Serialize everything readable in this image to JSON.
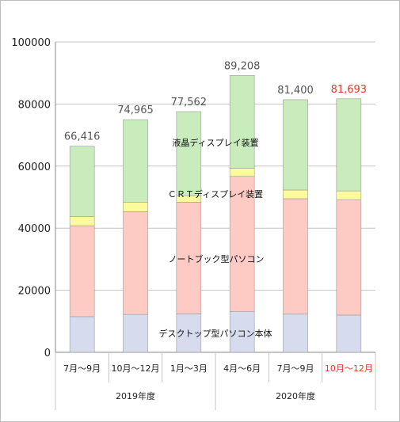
{
  "chart_data": {
    "type": "bar",
    "stacked": true,
    "ylim": [
      0,
      100000
    ],
    "yticks": [
      0,
      20000,
      40000,
      60000,
      80000,
      100000
    ],
    "grid": true,
    "categories": [
      "7月～9月",
      "10月～12月",
      "1月～3月",
      "4月～6月",
      "7月～9月",
      "10月～12月"
    ],
    "groups": [
      {
        "label": "2019年度",
        "start": 0,
        "end": 2
      },
      {
        "label": "2020年度",
        "start": 3,
        "end": 5
      }
    ],
    "totals": [
      66416,
      74965,
      77562,
      89208,
      81400,
      81693
    ],
    "total_labels": [
      "66,416",
      "74,965",
      "77,562",
      "89,208",
      "81,400",
      "81,693"
    ],
    "highlight_index": 5,
    "highlight_color": "#e8392f",
    "series": [
      {
        "name": "デスクトップ型パソコン本体",
        "color": "#d6dcee",
        "values": [
          11500,
          12200,
          12400,
          13200,
          12300,
          12000
        ]
      },
      {
        "name": "ノートブック型パソコン",
        "color": "#fdcbc4",
        "values": [
          29300,
          33100,
          36000,
          43500,
          37200,
          37200
        ]
      },
      {
        "name": "ＣＲＴディスプレイ装置",
        "color": "#fbfb9c",
        "values": [
          2900,
          3100,
          2100,
          2600,
          2800,
          2800
        ]
      },
      {
        "name": "液晶ディスプレイ装置",
        "color": "#c9ecbd",
        "values": [
          22716,
          26565,
          27062,
          29908,
          29100,
          29693
        ]
      }
    ]
  }
}
